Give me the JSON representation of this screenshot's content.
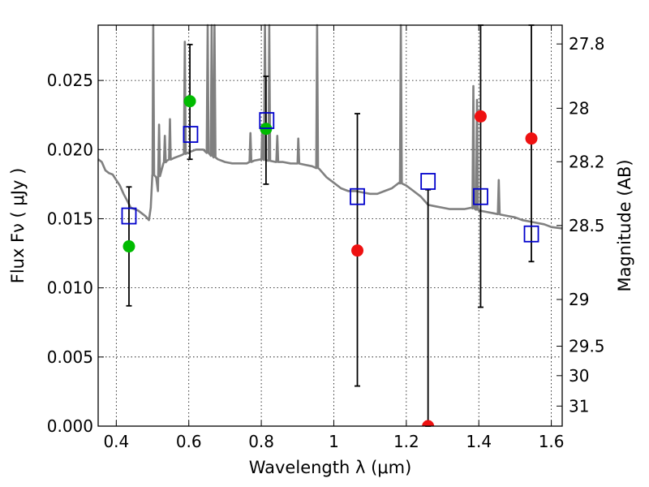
{
  "chart_data": {
    "type": "scatter",
    "xlabel": "Wavelength  λ (μm)",
    "ylabel": "Flux  Fν  ( μJy )",
    "y2label": "Magnitude (AB)",
    "xlim": [
      0.35,
      1.63
    ],
    "ylim": [
      0.0,
      0.029
    ],
    "x_ticks": [
      0.4,
      0.6,
      0.8,
      1.0,
      1.2,
      1.4,
      1.6
    ],
    "x_tick_labels": [
      "0.4",
      "0.6",
      "0.8",
      "1",
      "1.2",
      "1.4",
      "1.6"
    ],
    "y_ticks": [
      0.0,
      0.005,
      0.01,
      0.015,
      0.02,
      0.025
    ],
    "y_tick_labels": [
      "0.000",
      "0.005",
      "0.010",
      "0.015",
      "0.020",
      "0.025"
    ],
    "mag_ticks": [
      {
        "label": "27.8",
        "value": 0.02764
      },
      {
        "label": "28",
        "value": 0.02299
      },
      {
        "label": "28.2",
        "value": 0.01912
      },
      {
        "label": "28.5",
        "value": 0.01451
      },
      {
        "label": "29",
        "value": 0.00916
      },
      {
        "label": "29.5",
        "value": 0.00578
      },
      {
        "label": "30",
        "value": 0.00365
      },
      {
        "label": "31",
        "value": 0.00145
      }
    ],
    "grid": true,
    "model_color": "#808080",
    "model_spectrum": [
      [
        0.35,
        0.0193
      ],
      [
        0.36,
        0.0191
      ],
      [
        0.37,
        0.0185
      ],
      [
        0.38,
        0.0183
      ],
      [
        0.39,
        0.0182
      ],
      [
        0.4,
        0.0178
      ],
      [
        0.41,
        0.0174
      ],
      [
        0.42,
        0.0168
      ],
      [
        0.43,
        0.0163
      ],
      [
        0.44,
        0.0158
      ],
      [
        0.45,
        0.0157
      ],
      [
        0.46,
        0.0156
      ],
      [
        0.47,
        0.0154
      ],
      [
        0.48,
        0.0152
      ],
      [
        0.49,
        0.0149
      ],
      [
        0.495,
        0.0158
      ],
      [
        0.5,
        0.0182
      ],
      [
        0.51,
        0.018
      ],
      [
        0.515,
        0.017
      ],
      [
        0.52,
        0.0188
      ],
      [
        0.53,
        0.019
      ],
      [
        0.54,
        0.0192
      ],
      [
        0.55,
        0.0193
      ],
      [
        0.56,
        0.0194
      ],
      [
        0.57,
        0.0195
      ],
      [
        0.58,
        0.0196
      ],
      [
        0.6,
        0.0198
      ],
      [
        0.62,
        0.02
      ],
      [
        0.64,
        0.02
      ],
      [
        0.66,
        0.0196
      ],
      [
        0.68,
        0.0193
      ],
      [
        0.7,
        0.0191
      ],
      [
        0.72,
        0.019
      ],
      [
        0.74,
        0.019
      ],
      [
        0.76,
        0.019
      ],
      [
        0.78,
        0.0192
      ],
      [
        0.8,
        0.0193
      ],
      [
        0.82,
        0.0192
      ],
      [
        0.84,
        0.0191
      ],
      [
        0.86,
        0.0191
      ],
      [
        0.88,
        0.019
      ],
      [
        0.9,
        0.019
      ],
      [
        0.92,
        0.0189
      ],
      [
        0.94,
        0.0188
      ],
      [
        0.96,
        0.0186
      ],
      [
        0.98,
        0.018
      ],
      [
        1.0,
        0.0176
      ],
      [
        1.02,
        0.0172
      ],
      [
        1.04,
        0.017
      ],
      [
        1.06,
        0.017
      ],
      [
        1.08,
        0.0169
      ],
      [
        1.1,
        0.0168
      ],
      [
        1.12,
        0.0168
      ],
      [
        1.14,
        0.017
      ],
      [
        1.16,
        0.0172
      ],
      [
        1.18,
        0.0176
      ],
      [
        1.2,
        0.0174
      ],
      [
        1.22,
        0.017
      ],
      [
        1.24,
        0.0166
      ],
      [
        1.26,
        0.016
      ],
      [
        1.28,
        0.0159
      ],
      [
        1.3,
        0.0158
      ],
      [
        1.32,
        0.0157
      ],
      [
        1.34,
        0.0157
      ],
      [
        1.36,
        0.0157
      ],
      [
        1.38,
        0.0158
      ],
      [
        1.4,
        0.0156
      ],
      [
        1.42,
        0.0155
      ],
      [
        1.44,
        0.0154
      ],
      [
        1.46,
        0.0153
      ],
      [
        1.48,
        0.0152
      ],
      [
        1.5,
        0.0151
      ],
      [
        1.52,
        0.0149
      ],
      [
        1.54,
        0.0148
      ],
      [
        1.56,
        0.0147
      ],
      [
        1.58,
        0.0146
      ],
      [
        1.6,
        0.0144
      ],
      [
        1.63,
        0.0143
      ]
    ],
    "emission_lines": [
      {
        "x": 0.502,
        "peak": 0.029
      },
      {
        "x": 0.518,
        "peak": 0.0218
      },
      {
        "x": 0.534,
        "peak": 0.021
      },
      {
        "x": 0.548,
        "peak": 0.0222
      },
      {
        "x": 0.589,
        "peak": 0.0278
      },
      {
        "x": 0.652,
        "peak": 0.029
      },
      {
        "x": 0.663,
        "peak": 0.029
      },
      {
        "x": 0.671,
        "peak": 0.029
      },
      {
        "x": 0.77,
        "peak": 0.0212
      },
      {
        "x": 0.803,
        "peak": 0.0218
      },
      {
        "x": 0.81,
        "peak": 0.029
      },
      {
        "x": 0.822,
        "peak": 0.029
      },
      {
        "x": 0.844,
        "peak": 0.021
      },
      {
        "x": 0.902,
        "peak": 0.0208
      },
      {
        "x": 0.954,
        "peak": 0.029
      },
      {
        "x": 1.185,
        "peak": 0.029
      },
      {
        "x": 1.385,
        "peak": 0.0246
      },
      {
        "x": 1.395,
        "peak": 0.0236
      },
      {
        "x": 1.455,
        "peak": 0.0178
      }
    ],
    "series": [
      {
        "color": "#00bb00",
        "marker": "circle",
        "points": [
          [
            0.435,
            0.013
          ],
          [
            0.603,
            0.0235
          ],
          [
            0.813,
            0.0215
          ]
        ]
      },
      {
        "color": "#ee1111",
        "marker": "circle",
        "points": [
          [
            1.065,
            0.0127
          ],
          [
            1.26,
            0.0
          ],
          [
            1.405,
            0.0224
          ],
          [
            1.545,
            0.0208
          ]
        ]
      },
      {
        "color": "#0000cc",
        "marker": "open-square",
        "points": [
          [
            0.435,
            0.0152
          ],
          [
            0.605,
            0.0211
          ],
          [
            0.815,
            0.0221
          ],
          [
            1.065,
            0.0166
          ],
          [
            1.26,
            0.0177
          ],
          [
            1.405,
            0.0166
          ],
          [
            1.545,
            0.0139
          ]
        ]
      }
    ],
    "error_bars": [
      {
        "x": 0.435,
        "low": 0.0087,
        "high": 0.0173
      },
      {
        "x": 0.603,
        "low": 0.0193,
        "high": 0.0276
      },
      {
        "x": 0.813,
        "low": 0.0175,
        "high": 0.0253
      },
      {
        "x": 1.065,
        "low": 0.0029,
        "high": 0.0226
      },
      {
        "x": 1.26,
        "low": 0.0,
        "high": 0.0171
      },
      {
        "x": 1.405,
        "low": 0.0086,
        "high": 0.029
      },
      {
        "x": 1.545,
        "low": 0.0119,
        "high": 0.029
      }
    ]
  }
}
